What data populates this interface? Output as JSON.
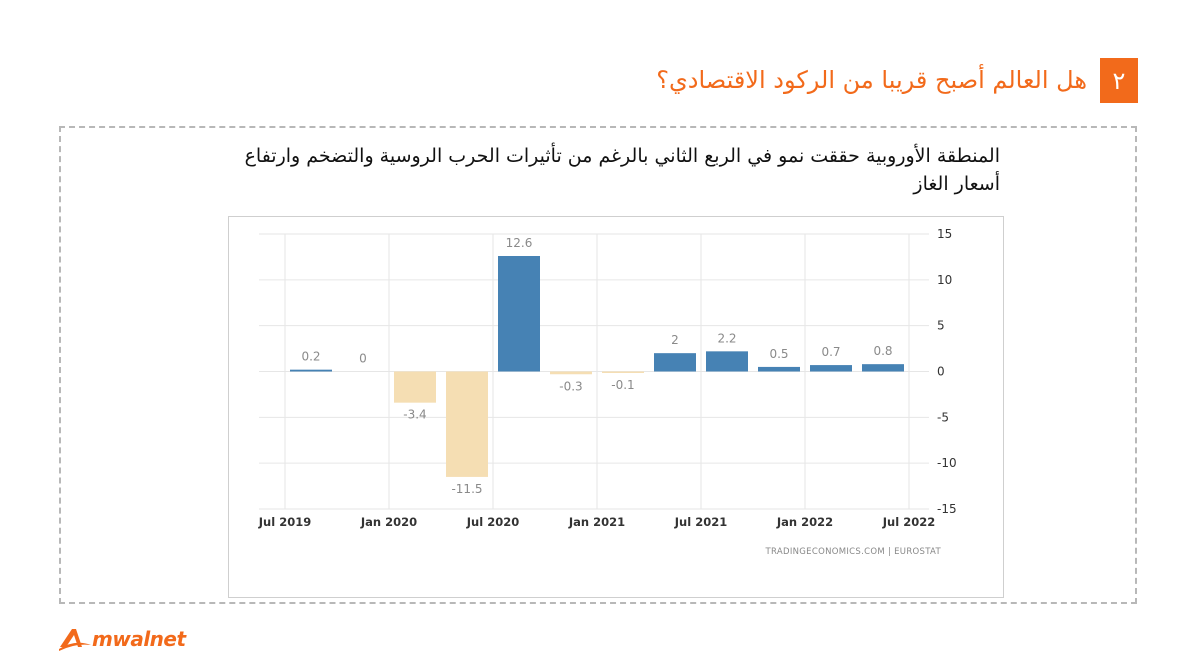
{
  "header": {
    "number": "٢",
    "title": "هل العالم أصبح قريبا من الركود الاقتصادي؟"
  },
  "subtitle": "المنطقة الأوروبية حققت نمو في الربع الثاني بالرغم من تأثيرات الحرب الروسية والتضخم وارتفاع أسعار الغاز",
  "chart_data": {
    "type": "bar",
    "categories": [
      "Q3 2019",
      "Q4 2019",
      "Q1 2020",
      "Q2 2020",
      "Q3 2020",
      "Q4 2020",
      "Q1 2021",
      "Q2 2021",
      "Q3 2021",
      "Q4 2021",
      "Q1 2022",
      "Q2 2022"
    ],
    "values": [
      0.2,
      0,
      -3.4,
      -11.5,
      12.6,
      -0.3,
      -0.1,
      2,
      2.2,
      0.5,
      0.7,
      0.8
    ],
    "value_labels": [
      "0.2",
      "0",
      "-3.4",
      "-11.5",
      "12.6",
      "-0.3",
      "-0.1",
      "2",
      "2.2",
      "0.5",
      "0.7",
      "0.8"
    ],
    "x_tick_labels": [
      "Jul 2019",
      "Jan 2020",
      "Jul 2020",
      "Jan 2021",
      "Jul 2021",
      "Jan 2022",
      "Jul 2022"
    ],
    "y_ticks": [
      15,
      10,
      5,
      0,
      -5,
      -10,
      -15
    ],
    "ylim": [
      -15,
      15
    ],
    "y_axis_side": "right",
    "grid": true,
    "source": "TRADINGECONOMICS.COM  |  EUROSTAT",
    "colors": {
      "positive": "#4682b4",
      "negative": "#f5deb3",
      "label": "#8a8a8a",
      "grid": "#e6e6e6"
    }
  },
  "footer": {
    "logo_text": "mwalnet",
    "logo_mark": "A",
    "brand_color": "#f26a1b"
  }
}
